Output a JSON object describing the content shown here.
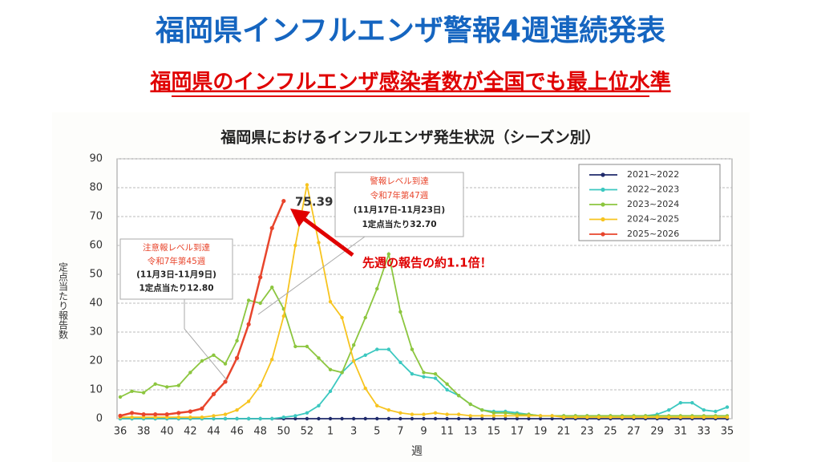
{
  "slide": {
    "title": "福岡県インフルエンザ警報4週連続発表",
    "subtitle": "福岡県のインフルエンザ感染者数が全国でも最上位水準"
  },
  "chart_data": {
    "type": "line",
    "title": "福岡県におけるインフルエンザ発生状況（シーズン別）",
    "x_label": "週",
    "y_label": "定点当たり報告数",
    "categories": [
      "36",
      null,
      "38",
      null,
      "40",
      null,
      "42",
      null,
      "44",
      null,
      "46",
      null,
      "48",
      null,
      "50",
      null,
      "52",
      null,
      "1",
      null,
      "3",
      null,
      "5",
      null,
      "7",
      null,
      "9",
      null,
      "11",
      null,
      "13",
      null,
      "15",
      null,
      "17",
      null,
      "19",
      null,
      "21",
      null,
      "23",
      null,
      "25",
      null,
      "27",
      null,
      "29",
      null,
      "31",
      null,
      "33",
      null,
      "35"
    ],
    "ylim": [
      0,
      90
    ],
    "yticks": [
      0,
      10,
      20,
      30,
      40,
      50,
      60,
      70,
      80,
      90
    ],
    "grid": true,
    "legend": "upper right",
    "series": [
      {
        "name": "2021~2022",
        "color": "#1f2a6b",
        "values": [
          0,
          0,
          0,
          0,
          0,
          0,
          0,
          0,
          0,
          0,
          0,
          0,
          0,
          0,
          0,
          0,
          0,
          0,
          0,
          0,
          0,
          0,
          0,
          0,
          0,
          0,
          0,
          0,
          0,
          0,
          0,
          0,
          0,
          0,
          0,
          0,
          0,
          0,
          0,
          0,
          0,
          0,
          0,
          0,
          0,
          0,
          0,
          0,
          0,
          0,
          0,
          0,
          0
        ]
      },
      {
        "name": "2022~2023",
        "color": "#3cc8c0",
        "values": [
          0,
          0,
          0,
          0,
          0,
          0,
          0,
          0,
          0,
          0,
          0,
          0,
          0,
          0,
          0.5,
          1,
          2,
          4.5,
          9.5,
          16,
          20,
          22,
          24,
          24,
          19.5,
          15.5,
          14.5,
          14,
          10,
          8,
          5,
          3,
          2.5,
          2.5,
          2,
          1.5,
          1,
          1,
          1,
          1,
          1,
          1,
          1,
          1,
          1,
          1,
          1.5,
          3,
          5.5,
          5.5,
          3,
          2.5,
          4
        ]
      },
      {
        "name": "2023~2024",
        "color": "#8cc63f",
        "values": [
          7.5,
          9.5,
          9,
          12,
          11,
          11.5,
          16,
          20,
          22,
          19,
          27,
          41,
          40,
          45.5,
          38,
          25,
          25,
          21,
          17,
          16,
          25.5,
          35,
          45,
          57,
          37,
          24,
          16,
          15.5,
          12,
          8,
          5,
          3,
          2,
          2,
          1.5,
          1.5,
          1,
          1,
          1,
          1,
          1,
          1,
          1,
          1,
          1,
          1,
          1,
          1,
          1,
          1,
          1,
          1,
          1
        ]
      },
      {
        "name": "2024~2025",
        "color": "#f7c41f",
        "values": [
          0.5,
          0.5,
          0.5,
          0.5,
          0.5,
          0.5,
          0.5,
          0.5,
          1,
          1.5,
          3,
          6,
          11.5,
          20.5,
          35.5,
          60,
          81,
          61,
          40.5,
          35,
          20,
          10.5,
          4.5,
          3,
          2,
          1.5,
          1.5,
          2,
          1.5,
          1.5,
          1,
          1,
          1,
          1,
          1,
          1,
          1,
          1,
          0.5,
          0.5,
          0.5,
          0.5,
          0.5,
          0.5,
          0.5,
          0.5,
          0.5,
          0.5,
          0.5,
          0.5,
          0.5,
          0.5,
          0.5
        ]
      },
      {
        "name": "2025~2026",
        "color": "#e8452c",
        "values": [
          1,
          2,
          1.5,
          1.5,
          1.5,
          2,
          2.5,
          3.5,
          8.5,
          12.8,
          21,
          32.7,
          49,
          66,
          75.39,
          null,
          null,
          null,
          null,
          null,
          null,
          null,
          null,
          null,
          null,
          null,
          null,
          null,
          null,
          null,
          null,
          null,
          null,
          null,
          null,
          null,
          null,
          null,
          null,
          null,
          null,
          null,
          null,
          null,
          null,
          null,
          null,
          null,
          null,
          null,
          null,
          null,
          null
        ]
      }
    ],
    "annotations": [
      "75.39",
      "先週の報告の約1.1倍！"
    ],
    "callouts": [
      {
        "lines": [
          "警報レベル到達",
          "令和7年第47週",
          "(11月17日-11月23日)",
          "1定点当たり32.70"
        ]
      },
      {
        "lines": [
          "注意報レベル到達",
          "令和7年第45週",
          "(11月3日-11月9日)",
          "1定点当たり12.80"
        ]
      }
    ]
  }
}
